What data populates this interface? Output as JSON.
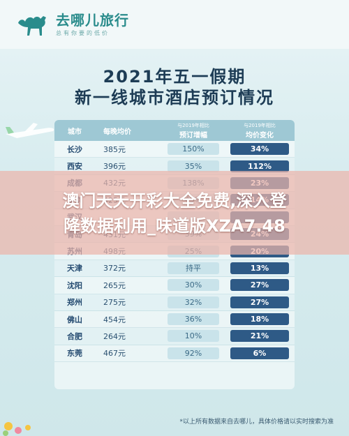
{
  "logo": {
    "name": "去哪儿旅行",
    "slogan": "总有你要的低价",
    "icon": "camel-icon",
    "color": "#2a8c8c"
  },
  "title": {
    "line1": "2021年五一假期",
    "line2": "新一线城市酒店预订情况"
  },
  "table": {
    "headers": {
      "city": "城市",
      "price": "每晚均价",
      "growth_note": "与2019年相比",
      "growth": "预订增幅",
      "change_note": "与2019年相比",
      "change": "均价变化"
    },
    "rows": [
      {
        "city": "长沙",
        "price": "385元",
        "growth": "150%",
        "change": "34%"
      },
      {
        "city": "西安",
        "price": "396元",
        "growth": "35%",
        "change": "112%"
      },
      {
        "city": "成都",
        "price": "432元",
        "growth": "138%",
        "change": "23%"
      },
      {
        "city": "南京",
        "price": "425元",
        "growth": "45%",
        "change": "14%"
      },
      {
        "city": "武汉",
        "price": "",
        "growth": "",
        "change": ""
      },
      {
        "city": "青岛",
        "price": "431元",
        "growth": "39%",
        "change": "24%"
      },
      {
        "city": "苏州",
        "price": "498元",
        "growth": "25%",
        "change": "20%"
      },
      {
        "city": "天津",
        "price": "372元",
        "growth": "持平",
        "change": "13%"
      },
      {
        "city": "沈阳",
        "price": "265元",
        "growth": "30%",
        "change": "27%"
      },
      {
        "city": "郑州",
        "price": "275元",
        "growth": "32%",
        "change": "27%"
      },
      {
        "city": "佛山",
        "price": "454元",
        "growth": "36%",
        "change": "18%"
      },
      {
        "city": "合肥",
        "price": "264元",
        "growth": "10%",
        "change": "21%"
      },
      {
        "city": "东莞",
        "price": "467元",
        "growth": "92%",
        "change": "6%"
      }
    ]
  },
  "banner": {
    "line1": "澳门天天开彩大全免费,深入登",
    "line2": "降数据利用_味道版XZA7.48"
  },
  "footnote": "*以上所有数据来自去哪儿，具体价格请以实时搜索为准"
}
